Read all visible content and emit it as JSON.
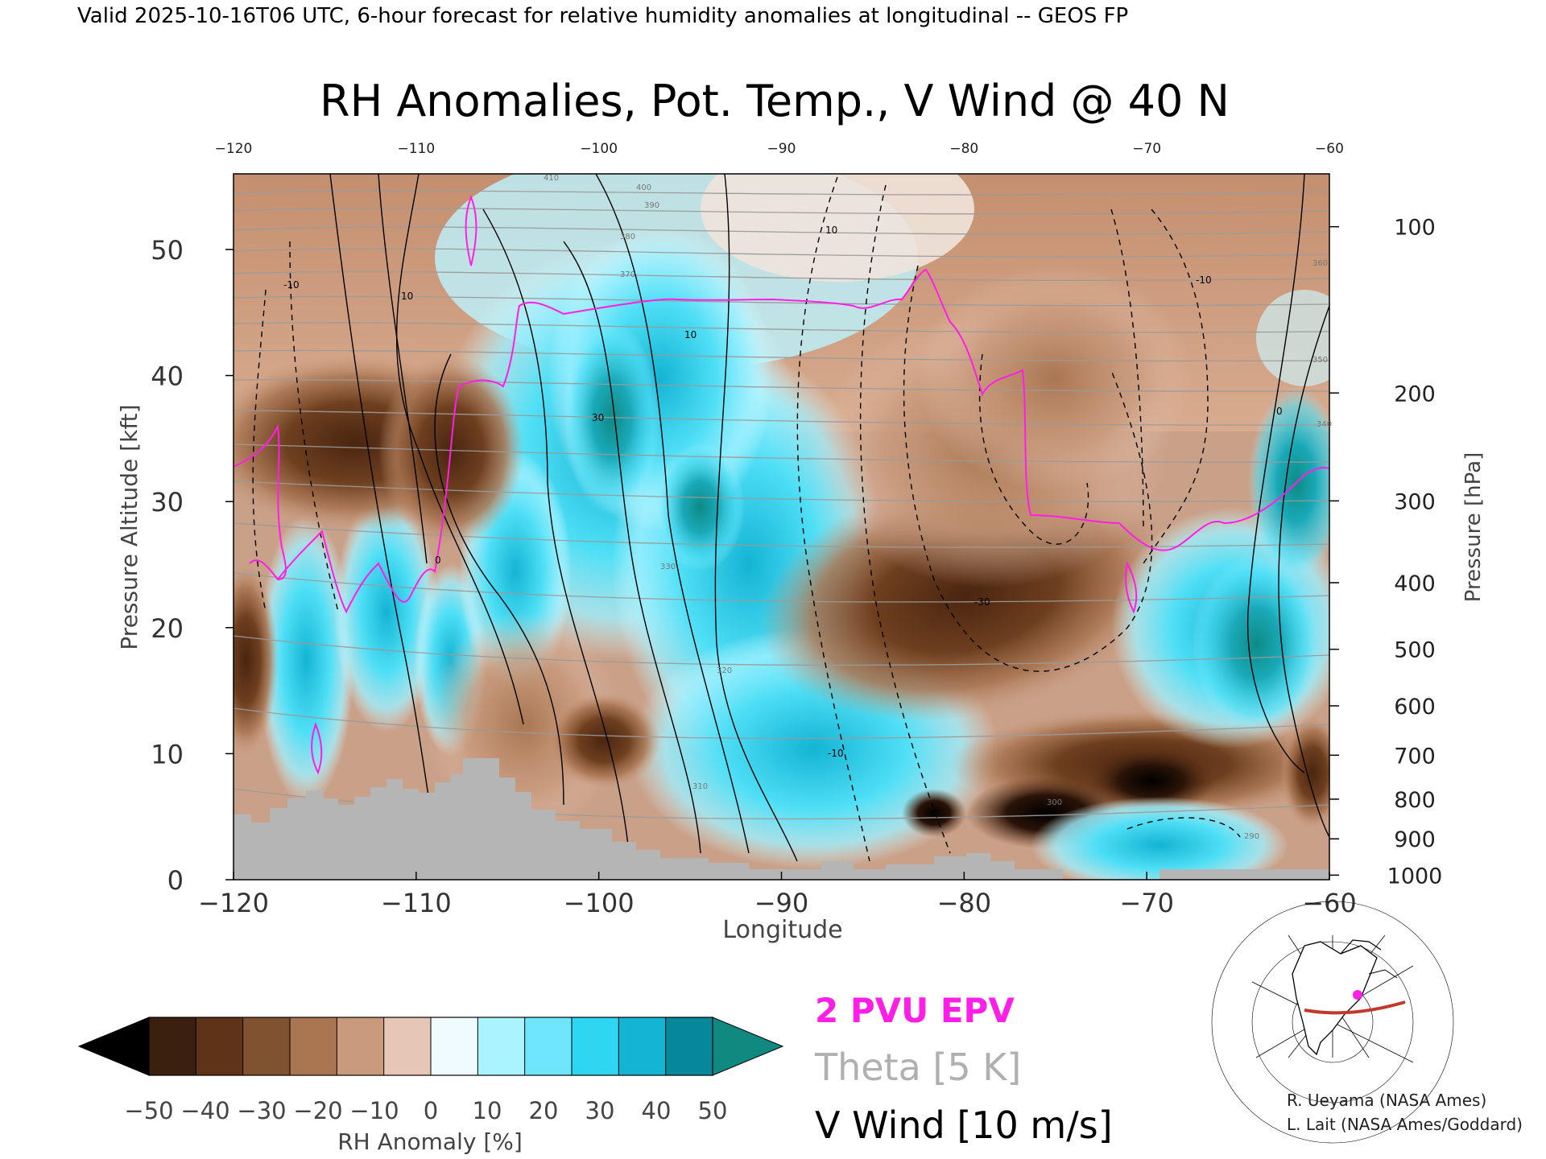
{
  "header": {
    "valid_line": "Valid 2025-10-16T06 UTC, 6-hour forecast for relative humidity anomalies at longitudinal -- GEOS FP"
  },
  "chart_data": {
    "type": "heatmap",
    "title": "RH Anomalies, Pot. Temp., V Wind @ 40 N",
    "xlabel": "Longitude",
    "ylabel_left": "Pressure Altitude [kft]",
    "ylabel_right": "Pressure [hPa]",
    "xlim": [
      -120,
      -60
    ],
    "ylim": [
      0,
      56
    ],
    "x_ticks_bottom": [
      -120,
      -110,
      -100,
      -90,
      -80,
      -70,
      -60
    ],
    "x_ticks_top": [
      -120,
      -110,
      -100,
      -90,
      -80,
      -70,
      -60
    ],
    "y_ticks_left": [
      0,
      10,
      20,
      30,
      40,
      50
    ],
    "y_ticks_right": [
      100,
      200,
      300,
      400,
      500,
      600,
      700,
      800,
      900,
      1000
    ],
    "colorbar": {
      "label": "RH Anomaly [%]",
      "ticks": [
        -50,
        -40,
        -30,
        -20,
        -10,
        0,
        10,
        20,
        30,
        40,
        50
      ],
      "colors": [
        "#000000",
        "#3b1f0f",
        "#5e3318",
        "#81522f",
        "#a97651",
        "#c99a7c",
        "#e6c7b6",
        "#effbff",
        "#aaf3ff",
        "#6fe6fb",
        "#2ed6f2",
        "#14b4d4",
        "#07889a",
        "#108a80"
      ]
    },
    "legend": [
      {
        "label": "2 PVU EPV",
        "color": "#ff1ee6"
      },
      {
        "label": "Theta [5 K]",
        "color": "#b0b0b0"
      },
      {
        "label": "V Wind [10 m/s]",
        "color": "#000000"
      }
    ],
    "contour_labels": {
      "v_wind": [
        "10",
        "-10",
        "0",
        "30",
        "-30",
        "10",
        "0",
        "-10",
        "10",
        "-10"
      ],
      "theta": [
        "410",
        "400",
        "390",
        "380",
        "370",
        "360",
        "350",
        "340",
        "330",
        "320",
        "310",
        "300",
        "290"
      ]
    },
    "regions": [
      {
        "lon": -112,
        "kft": 33,
        "rh": -45
      },
      {
        "lon": -108,
        "kft": 30,
        "rh": -40
      },
      {
        "lon": -100,
        "kft": 35,
        "rh": 40
      },
      {
        "lon": -95,
        "kft": 29,
        "rh": 50
      },
      {
        "lon": -80,
        "kft": 22,
        "rh": -45
      },
      {
        "lon": -78,
        "kft": 9,
        "rh": -50
      },
      {
        "lon": -66,
        "kft": 20,
        "rh": 45
      },
      {
        "lon": -62,
        "kft": 31,
        "rh": 50
      },
      {
        "lon": -116,
        "kft": 18,
        "rh": 40
      },
      {
        "lon": -100,
        "kft": 11,
        "rh": -40
      }
    ]
  },
  "credits": {
    "line1": "R. Ueyama (NASA Ames)",
    "line2": "L. Lait (NASA Ames/Goddard)"
  }
}
